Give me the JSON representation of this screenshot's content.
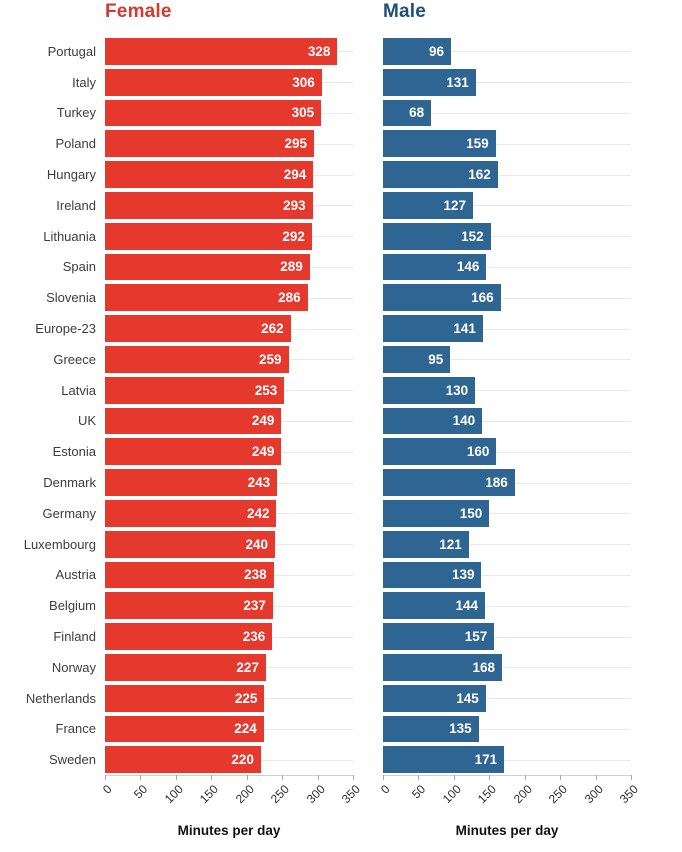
{
  "chart_data": {
    "type": "bar",
    "orientation": "horizontal",
    "title": "",
    "xlabel": "Minutes per day",
    "xlim": [
      0,
      350
    ],
    "xticks": [
      0,
      50,
      100,
      150,
      200,
      250,
      300,
      350
    ],
    "grid": "horizontal-category-gridlines",
    "value_labels": "inside-end white bold",
    "categories": [
      "Portugal",
      "Italy",
      "Turkey",
      "Poland",
      "Hungary",
      "Ireland",
      "Lithuania",
      "Spain",
      "Slovenia",
      "Europe-23",
      "Greece",
      "Latvia",
      "UK",
      "Estonia",
      "Denmark",
      "Germany",
      "Luxembourg",
      "Austria",
      "Belgium",
      "Finland",
      "Norway",
      "Netherlands",
      "France",
      "Sweden"
    ],
    "series": [
      {
        "name": "Female",
        "bar_color": "#e5392d",
        "title_color": "#d43a2e",
        "values": [
          328,
          306,
          305,
          295,
          294,
          293,
          292,
          289,
          286,
          262,
          259,
          253,
          249,
          249,
          243,
          242,
          240,
          238,
          237,
          236,
          227,
          225,
          224,
          220
        ]
      },
      {
        "name": "Male",
        "bar_color": "#2e6593",
        "title_color": "#1f4e79",
        "values": [
          96,
          131,
          68,
          159,
          162,
          127,
          152,
          146,
          166,
          141,
          95,
          130,
          140,
          160,
          186,
          150,
          121,
          139,
          144,
          157,
          168,
          145,
          135,
          171
        ]
      }
    ]
  },
  "style_colors": {
    "background": "#ffffff",
    "gridline": "#e9e9e9",
    "axis_line": "#cfcfcf",
    "tick_mark": "#a8a8a8",
    "tick_label": "#2e2e2e",
    "country_label": "#3d3d3d",
    "axis_title": "#111111",
    "value_label": "#ffffff"
  }
}
